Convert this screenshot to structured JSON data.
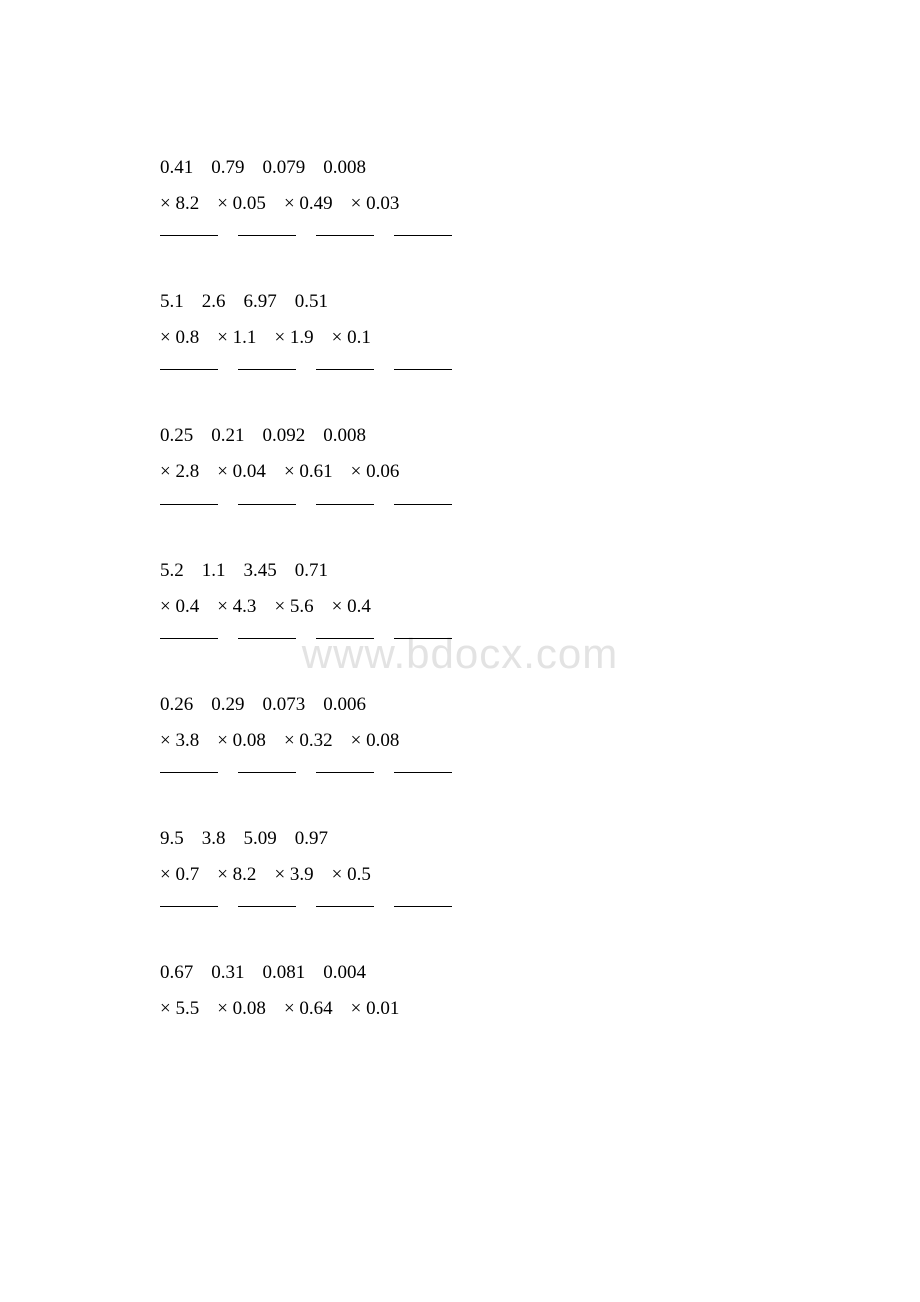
{
  "watermark": "www.bdocx.com",
  "groups": [
    {
      "top": [
        "0.41",
        "0.79",
        "0.079",
        "0.008"
      ],
      "mult": [
        "× 8.2",
        "× 0.05",
        "× 0.49",
        "× 0.03"
      ]
    },
    {
      "top": [
        "5.1",
        "2.6",
        "6.97",
        "0.51"
      ],
      "mult": [
        "× 0.8",
        "× 1.1",
        "× 1.9",
        "× 0.1"
      ]
    },
    {
      "top": [
        "0.25",
        "0.21",
        "0.092",
        "0.008"
      ],
      "mult": [
        "× 2.8",
        "× 0.04",
        "× 0.61",
        "× 0.06"
      ]
    },
    {
      "top": [
        "5.2",
        "1.1",
        "3.45",
        "0.71"
      ],
      "mult": [
        "× 0.4",
        "× 4.3",
        "× 5.6",
        "× 0.4"
      ]
    },
    {
      "top": [
        "0.26",
        "0.29",
        "0.073",
        "0.006"
      ],
      "mult": [
        "× 3.8",
        "× 0.08",
        "× 0.32",
        "× 0.08"
      ]
    },
    {
      "top": [
        "9.5",
        "3.8",
        "5.09",
        "0.97"
      ],
      "mult": [
        "× 0.7",
        "× 8.2",
        "× 3.9",
        "× 0.5"
      ]
    },
    {
      "top": [
        "0.67",
        "0.31",
        "0.081",
        "0.004"
      ],
      "mult": [
        "× 5.5",
        "× 0.08",
        "× 0.64",
        "× 0.01"
      ]
    }
  ],
  "style": {
    "background_color": "#ffffff",
    "text_color": "#000000",
    "font_family": "Times New Roman",
    "font_size_pt": 14,
    "watermark_color": "rgba(200,200,200,0.5)",
    "watermark_font_size": 42
  }
}
